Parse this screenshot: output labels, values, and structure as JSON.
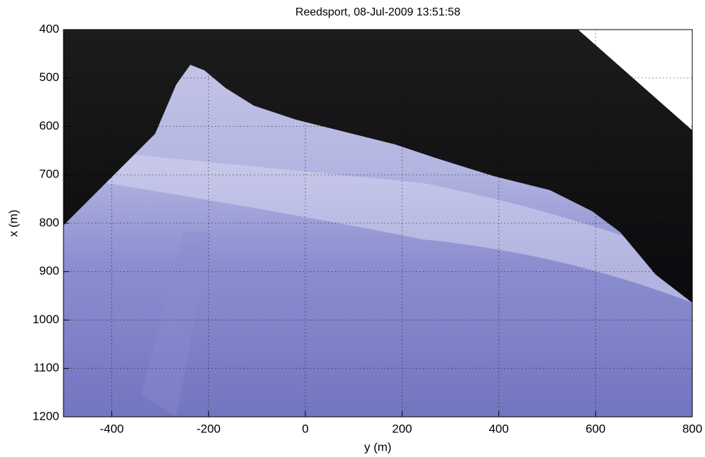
{
  "chart_data": {
    "type": "image",
    "title": "Reedsport, 08-Jul-2009 13:51:58",
    "xlabel": "y (m)",
    "ylabel": "x (m)",
    "xlim": [
      -500,
      800
    ],
    "xticks": [
      -400,
      -200,
      0,
      200,
      400,
      600,
      800
    ],
    "ylim": [
      1200,
      400
    ],
    "yticks": [
      400,
      500,
      600,
      700,
      800,
      900,
      1000,
      1100,
      1200
    ],
    "grid": true
  }
}
